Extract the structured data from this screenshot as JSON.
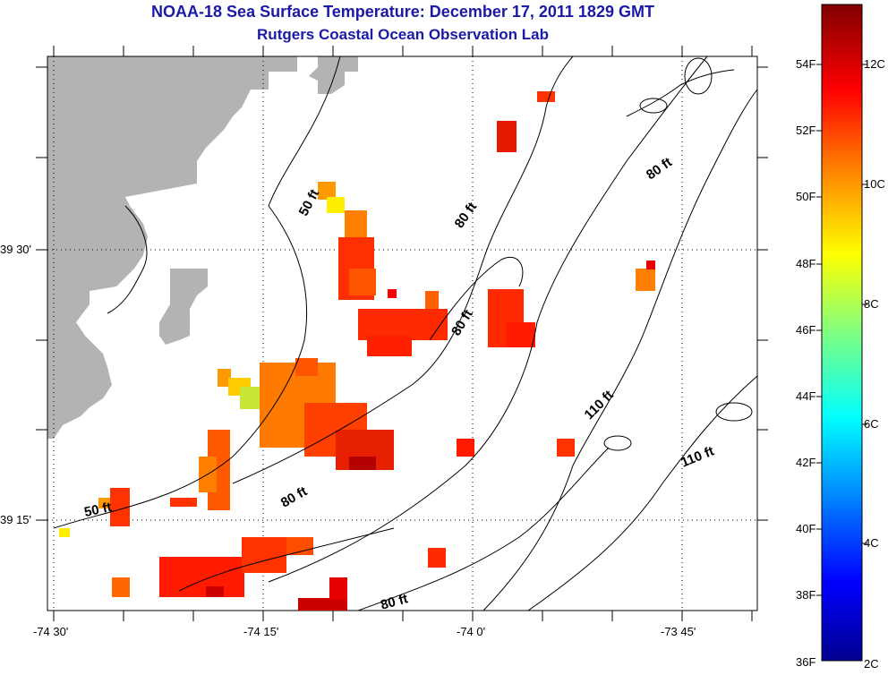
{
  "title": "NOAA-18 Sea Surface Temperature:  December 17, 2011 1829 GMT",
  "subtitle": "Rutgers Coastal Ocean Observation Lab",
  "lon_ticks": [
    "-74 30'",
    "-74 15'",
    "-74 0'",
    "-73 45'"
  ],
  "lat_ticks": [
    "39 30'",
    "39 15'"
  ],
  "depth_labels": [
    "50 ft",
    "80 ft",
    "80 ft",
    "80 ft",
    "80 ft",
    "80 ft",
    "110 ft",
    "110 ft",
    "50 ft"
  ],
  "colorbar": {
    "fahrenheit": [
      "54F",
      "52F",
      "50F",
      "48F",
      "46F",
      "44F",
      "42F",
      "40F",
      "38F",
      "36F"
    ],
    "celsius": [
      "12C",
      "10C",
      "8C",
      "6C",
      "4C",
      "2C"
    ],
    "colors": [
      "#800000",
      "#ff0000",
      "#ff8000",
      "#ffff00",
      "#80ff80",
      "#00ffff",
      "#0080ff",
      "#0000ff",
      "#000080"
    ]
  },
  "colors": {
    "land": "#b3b3b3",
    "title": "#1a1aa6"
  }
}
